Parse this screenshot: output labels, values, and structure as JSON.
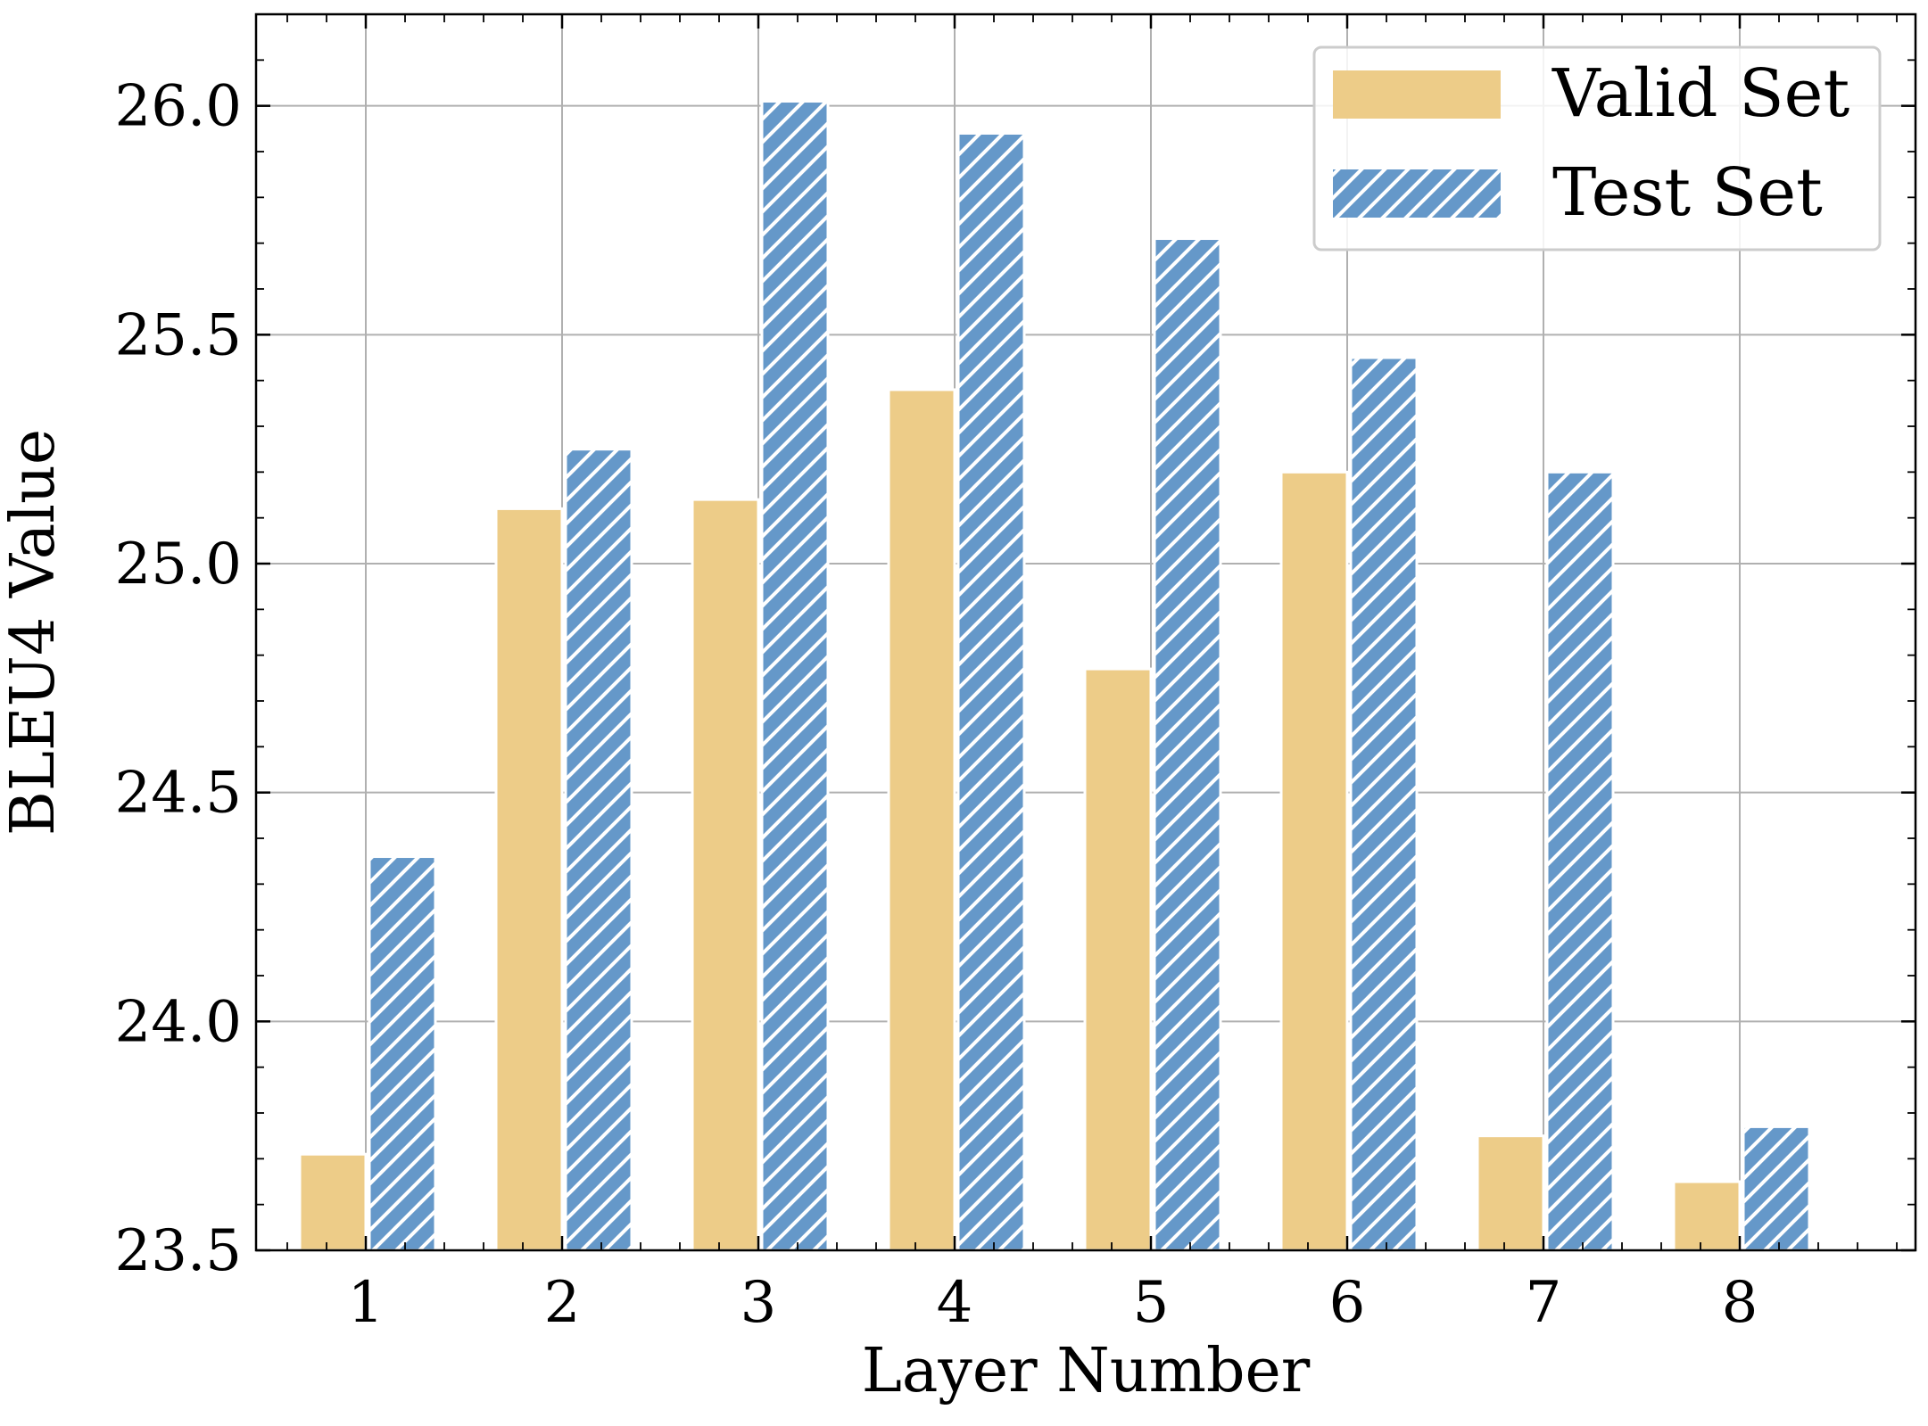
{
  "chart_data": {
    "type": "bar",
    "title": "",
    "xlabel": "Layer Number",
    "ylabel": "BLEU4 Value",
    "categories": [
      "1",
      "2",
      "3",
      "4",
      "5",
      "6",
      "7",
      "8"
    ],
    "series": [
      {
        "name": "Valid Set",
        "color": "#edcc88",
        "hatch": "none",
        "values": [
          23.71,
          25.12,
          25.14,
          25.38,
          24.77,
          25.2,
          23.75,
          23.65
        ]
      },
      {
        "name": "Test Set",
        "color": "#6598c9",
        "hatch": "diagonal",
        "values": [
          24.36,
          25.25,
          26.01,
          25.94,
          25.71,
          25.45,
          25.2,
          23.77
        ]
      }
    ],
    "ylim": [
      23.5,
      26.2
    ],
    "yticks": [
      "23.5",
      "24.0",
      "24.5",
      "25.0",
      "25.5",
      "26.0"
    ],
    "ytick_values": [
      23.5,
      24.0,
      24.5,
      25.0,
      25.5,
      26.0
    ],
    "grid": true,
    "legend_position": "top-right"
  },
  "colors": {
    "grid": "#b0b0b0",
    "axis": "#000000",
    "hatch_line": "#ffffff",
    "legend_border": "#cccccc"
  }
}
